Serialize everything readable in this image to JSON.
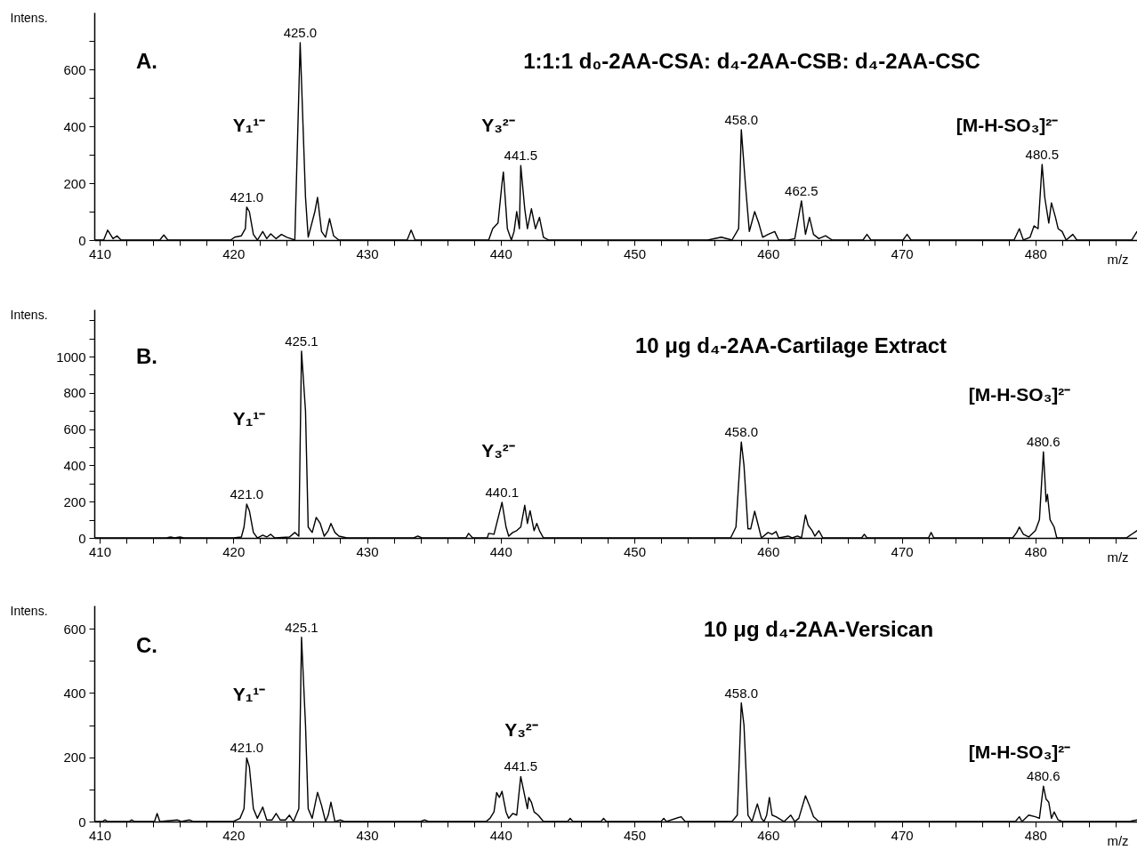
{
  "chart_data": [
    {
      "type": "line",
      "title": "1:1:1 d₀-2AA-CSA: d₄-2AA-CSB: d₄-2AA-CSC",
      "xlabel": "m/z",
      "ylabel": "Intens.",
      "xlim": [
        409.6,
        487.6
      ],
      "ylim": [
        0,
        800
      ],
      "xticks": [
        410,
        {
          "value": 412,
          "label": null
        },
        {
          "value": 414,
          "label": null
        },
        {
          "value": 416,
          "label": null
        },
        {
          "value": 418,
          "label": null
        },
        420,
        {
          "value": 422,
          "label": null
        },
        {
          "value": 424,
          "label": null
        },
        {
          "value": 426,
          "label": null
        },
        {
          "value": 428,
          "label": null
        },
        430,
        {
          "value": 432,
          "label": null
        },
        {
          "value": 434,
          "label": null
        },
        {
          "value": 436,
          "label": null
        },
        {
          "value": 438,
          "label": null
        },
        440,
        {
          "value": 442,
          "label": null
        },
        {
          "value": 444,
          "label": null
        },
        {
          "value": 446,
          "label": null
        },
        {
          "value": 448,
          "label": null
        },
        450,
        {
          "value": 452,
          "label": null
        },
        {
          "value": 454,
          "label": null
        },
        {
          "value": 456,
          "label": null
        },
        {
          "value": 458,
          "label": null
        },
        460,
        {
          "value": 462,
          "label": null
        },
        {
          "value": 464,
          "label": null
        },
        {
          "value": 466,
          "label": null
        },
        {
          "value": 468,
          "label": null
        },
        470,
        {
          "value": 472,
          "label": null
        },
        {
          "value": 474,
          "label": null
        },
        {
          "value": 476,
          "label": null
        },
        {
          "value": 478,
          "label": null
        },
        480,
        {
          "value": 482,
          "label": null
        },
        {
          "value": 484,
          "label": null
        },
        {
          "value": 486,
          "label": null
        }
      ],
      "yticks": [
        0,
        {
          "value": 100,
          "label": null
        },
        200,
        {
          "value": 300,
          "label": null
        },
        400,
        {
          "value": 500,
          "label": null
        },
        600,
        {
          "value": 700,
          "label": null
        }
      ],
      "x": [
        409.6,
        410.3,
        410.6,
        411.0,
        411.3,
        411.6,
        414.5,
        414.8,
        415.1,
        417.3,
        419.8,
        420.1,
        420.6,
        420.9,
        421.0,
        421.2,
        421.5,
        421.8,
        422.2,
        422.5,
        422.8,
        423.2,
        423.6,
        424.0,
        424.3,
        424.6,
        425.0,
        425.4,
        425.6,
        426.1,
        426.3,
        426.6,
        426.9,
        427.2,
        427.5,
        427.9,
        433.0,
        433.3,
        433.6,
        439.1,
        439.4,
        439.8,
        440.1,
        440.2,
        440.5,
        440.8,
        441.0,
        441.2,
        441.4,
        441.5,
        441.8,
        442.0,
        442.3,
        442.6,
        442.9,
        443.2,
        443.6,
        455.5,
        456.5,
        457.3,
        457.8,
        458.0,
        458.3,
        458.6,
        459.0,
        459.3,
        459.6,
        460.0,
        460.5,
        460.8,
        461.5,
        462.0,
        462.5,
        462.8,
        463.1,
        463.4,
        463.8,
        464.3,
        464.8,
        467.1,
        467.4,
        467.7,
        470.1,
        470.4,
        470.7,
        478.4,
        478.8,
        479.1,
        479.6,
        479.9,
        480.2,
        480.5,
        480.7,
        481.0,
        481.2,
        481.5,
        481.7,
        482.0,
        482.3,
        482.8,
        483.1,
        487.2,
        487.6
      ],
      "series": [
        {
          "color": "#000000",
          "values": [
            0,
            0,
            35,
            5,
            15,
            0,
            0,
            18,
            0,
            0,
            0,
            10,
            15,
            40,
            116,
            100,
            20,
            0,
            30,
            5,
            22,
            5,
            20,
            10,
            5,
            0,
            694,
            150,
            10,
            100,
            150,
            30,
            10,
            75,
            15,
            0,
            0,
            35,
            0,
            0,
            40,
            60,
            200,
            239,
            40,
            0,
            30,
            100,
            40,
            262,
            110,
            40,
            110,
            40,
            80,
            10,
            0,
            0,
            10,
            0,
            40,
            388,
            200,
            30,
            100,
            60,
            10,
            20,
            30,
            0,
            0,
            5,
            138,
            20,
            80,
            20,
            5,
            15,
            0,
            0,
            20,
            0,
            0,
            20,
            0,
            0,
            40,
            0,
            10,
            50,
            40,
            266,
            150,
            60,
            131,
            80,
            40,
            30,
            0,
            20,
            0,
            0,
            30
          ]
        }
      ],
      "annotations": [
        "A.",
        "Y₁¹⁻",
        "Y₃²⁻",
        "[M-H-SO₃]²⁻",
        {
          "text": "421.0",
          "x": 421.0,
          "y": 116
        },
        {
          "text": "425.0",
          "x": 425.0,
          "y": 694
        },
        {
          "text": "441.5",
          "x": 441.5,
          "y": 262
        },
        {
          "text": "458.0",
          "x": 458.0,
          "y": 388
        },
        {
          "text": "462.5",
          "x": 462.5,
          "y": 138
        },
        {
          "text": "480.5",
          "x": 480.5,
          "y": 266
        }
      ]
    },
    {
      "type": "line",
      "title": "10 μg d₄-2AA-Cartilage Extract",
      "xlabel": "m/z",
      "ylabel": "Intens.",
      "xlim": [
        409.6,
        487.6
      ],
      "ylim": [
        0,
        1260
      ],
      "xticks": [
        410,
        {
          "value": 412,
          "label": null
        },
        {
          "value": 414,
          "label": null
        },
        {
          "value": 416,
          "label": null
        },
        {
          "value": 418,
          "label": null
        },
        420,
        {
          "value": 422,
          "label": null
        },
        {
          "value": 424,
          "label": null
        },
        {
          "value": 426,
          "label": null
        },
        {
          "value": 428,
          "label": null
        },
        430,
        {
          "value": 432,
          "label": null
        },
        {
          "value": 434,
          "label": null
        },
        {
          "value": 436,
          "label": null
        },
        {
          "value": 438,
          "label": null
        },
        440,
        {
          "value": 442,
          "label": null
        },
        {
          "value": 444,
          "label": null
        },
        {
          "value": 446,
          "label": null
        },
        {
          "value": 448,
          "label": null
        },
        450,
        {
          "value": 452,
          "label": null
        },
        {
          "value": 454,
          "label": null
        },
        {
          "value": 456,
          "label": null
        },
        {
          "value": 458,
          "label": null
        },
        460,
        {
          "value": 462,
          "label": null
        },
        {
          "value": 464,
          "label": null
        },
        {
          "value": 466,
          "label": null
        },
        {
          "value": 468,
          "label": null
        },
        470,
        {
          "value": 472,
          "label": null
        },
        {
          "value": 474,
          "label": null
        },
        {
          "value": 476,
          "label": null
        },
        {
          "value": 478,
          "label": null
        },
        480,
        {
          "value": 482,
          "label": null
        },
        {
          "value": 484,
          "label": null
        },
        {
          "value": 486,
          "label": null
        }
      ],
      "yticks": [
        0,
        {
          "value": 100,
          "label": null
        },
        200,
        {
          "value": 300,
          "label": null
        },
        400,
        {
          "value": 500,
          "label": null
        },
        600,
        {
          "value": 700,
          "label": null
        },
        800,
        {
          "value": 900,
          "label": null
        },
        1000,
        {
          "value": 1100,
          "label": null
        },
        {
          "value": 1200,
          "label": null
        }
      ],
      "x": [
        409.6,
        415.0,
        415.3,
        415.6,
        416.0,
        416.3,
        420.0,
        420.6,
        420.8,
        421.0,
        421.2,
        421.5,
        421.8,
        422.2,
        422.5,
        422.8,
        423.1,
        424.2,
        424.6,
        424.9,
        425.1,
        425.4,
        425.6,
        425.9,
        426.2,
        426.5,
        426.8,
        427.1,
        427.3,
        427.6,
        427.9,
        428.2,
        428.5,
        433.5,
        433.8,
        434.1,
        437.4,
        437.6,
        437.9,
        439.0,
        439.1,
        439.5,
        440.1,
        440.4,
        440.6,
        440.9,
        441.2,
        441.5,
        441.8,
        442.0,
        442.2,
        442.5,
        442.7,
        442.9,
        443.2,
        457.2,
        457.6,
        457.8,
        458.0,
        458.2,
        458.5,
        458.7,
        459.0,
        459.3,
        459.5,
        460.0,
        460.3,
        460.6,
        460.8,
        461.5,
        461.8,
        462.2,
        462.5,
        462.8,
        463.0,
        463.3,
        463.5,
        463.8,
        464.1,
        467.0,
        467.2,
        467.4,
        472.0,
        472.2,
        472.4,
        478.3,
        478.6,
        478.8,
        479.1,
        479.5,
        480.0,
        480.3,
        480.6,
        480.8,
        480.9,
        481.1,
        481.4,
        481.6,
        486.8,
        487.6
      ],
      "series": [
        {
          "color": "#000000",
          "values": [
            0,
            0,
            5,
            0,
            5,
            0,
            0,
            5,
            60,
            186,
            150,
            30,
            0,
            15,
            5,
            20,
            0,
            5,
            30,
            10,
            1030,
            700,
            60,
            30,
            113,
            80,
            10,
            40,
            80,
            30,
            10,
            5,
            0,
            0,
            10,
            0,
            0,
            25,
            0,
            0,
            25,
            20,
            196,
            60,
            10,
            30,
            40,
            60,
            180,
            80,
            150,
            40,
            80,
            40,
            0,
            0,
            60,
            300,
            529,
            400,
            50,
            50,
            147,
            60,
            0,
            30,
            20,
            35,
            0,
            10,
            0,
            10,
            0,
            127,
            70,
            40,
            10,
            40,
            0,
            0,
            20,
            0,
            0,
            30,
            0,
            0,
            30,
            60,
            20,
            5,
            40,
            100,
            475,
            200,
            240,
            100,
            60,
            0,
            0,
            40
          ]
        }
      ],
      "annotations": [
        "B.",
        "Y₁¹⁻",
        "Y₃²⁻",
        "[M-H-SO₃]²⁻",
        {
          "text": "421.0",
          "x": 421.0,
          "y": 186
        },
        {
          "text": "425.1",
          "x": 425.1,
          "y": 1030
        },
        {
          "text": "440.1",
          "x": 440.1,
          "y": 196
        },
        {
          "text": "458.0",
          "x": 458.0,
          "y": 529
        },
        {
          "text": "480.6",
          "x": 480.6,
          "y": 475
        }
      ]
    },
    {
      "type": "line",
      "title": "10 μg d₄-2AA-Versican",
      "xlabel": "m/z",
      "ylabel": "Intens.",
      "xlim": [
        409.6,
        487.6
      ],
      "ylim": [
        0,
        672
      ],
      "xticks": [
        410,
        {
          "value": 412,
          "label": null
        },
        {
          "value": 414,
          "label": null
        },
        {
          "value": 416,
          "label": null
        },
        {
          "value": 418,
          "label": null
        },
        420,
        {
          "value": 422,
          "label": null
        },
        {
          "value": 424,
          "label": null
        },
        {
          "value": 426,
          "label": null
        },
        {
          "value": 428,
          "label": null
        },
        430,
        {
          "value": 432,
          "label": null
        },
        {
          "value": 434,
          "label": null
        },
        {
          "value": 436,
          "label": null
        },
        {
          "value": 438,
          "label": null
        },
        440,
        {
          "value": 442,
          "label": null
        },
        {
          "value": 444,
          "label": null
        },
        {
          "value": 446,
          "label": null
        },
        {
          "value": 448,
          "label": null
        },
        450,
        {
          "value": 452,
          "label": null
        },
        {
          "value": 454,
          "label": null
        },
        {
          "value": 456,
          "label": null
        },
        {
          "value": 458,
          "label": null
        },
        460,
        {
          "value": 462,
          "label": null
        },
        {
          "value": 464,
          "label": null
        },
        {
          "value": 466,
          "label": null
        },
        {
          "value": 468,
          "label": null
        },
        470,
        {
          "value": 472,
          "label": null
        },
        {
          "value": 474,
          "label": null
        },
        {
          "value": 476,
          "label": null
        },
        {
          "value": 478,
          "label": null
        },
        480,
        {
          "value": 482,
          "label": null
        },
        {
          "value": 484,
          "label": null
        },
        {
          "value": 486,
          "label": null
        }
      ],
      "yticks": [
        0,
        {
          "value": 100,
          "label": null
        },
        200,
        {
          "value": 300,
          "label": null
        },
        400,
        {
          "value": 500,
          "label": null
        },
        600
      ],
      "x": [
        409.6,
        410.2,
        410.4,
        410.6,
        412.2,
        412.4,
        412.6,
        414.1,
        414.3,
        414.5,
        415.8,
        416.1,
        416.7,
        417.0,
        420.0,
        420.5,
        420.8,
        421.0,
        421.2,
        421.5,
        421.8,
        422.2,
        422.5,
        422.9,
        423.2,
        423.5,
        423.9,
        424.2,
        424.5,
        424.9,
        425.1,
        425.4,
        425.6,
        425.9,
        426.3,
        426.6,
        426.9,
        427.1,
        427.3,
        427.6,
        428.0,
        428.3,
        434.0,
        434.3,
        434.6,
        438.9,
        439.2,
        439.5,
        439.7,
        439.9,
        440.1,
        440.4,
        440.6,
        440.9,
        441.2,
        441.5,
        441.8,
        442.0,
        442.1,
        442.3,
        442.5,
        442.8,
        443.2,
        445.0,
        445.2,
        445.4,
        447.5,
        447.7,
        447.9,
        452.0,
        452.2,
        452.4,
        453.5,
        453.8,
        457.3,
        457.7,
        458.0,
        458.2,
        458.5,
        458.8,
        459.2,
        459.5,
        459.7,
        459.9,
        460.1,
        460.3,
        460.6,
        461.2,
        461.7,
        462.0,
        462.3,
        462.8,
        463.1,
        463.4,
        463.8,
        478.5,
        478.8,
        479.0,
        479.5,
        480.0,
        480.3,
        480.6,
        480.8,
        481.0,
        481.2,
        481.4,
        481.7,
        482.0,
        487.0,
        487.6
      ],
      "series": [
        {
          "color": "#000000",
          "values": [
            0,
            0,
            5,
            0,
            0,
            5,
            0,
            0,
            25,
            0,
            5,
            0,
            5,
            0,
            0,
            10,
            40,
            198,
            170,
            40,
            10,
            45,
            5,
            5,
            25,
            5,
            5,
            20,
            0,
            40,
            573,
            300,
            40,
            10,
            91,
            50,
            0,
            20,
            60,
            0,
            5,
            0,
            0,
            5,
            0,
            0,
            10,
            30,
            90,
            75,
            94,
            30,
            10,
            25,
            20,
            140,
            80,
            40,
            75,
            60,
            30,
            20,
            0,
            0,
            10,
            0,
            0,
            10,
            0,
            0,
            10,
            0,
            15,
            0,
            0,
            20,
            369,
            300,
            20,
            0,
            55,
            10,
            0,
            20,
            75,
            20,
            15,
            0,
            20,
            0,
            10,
            80,
            50,
            15,
            0,
            0,
            15,
            0,
            20,
            15,
            10,
            110,
            70,
            60,
            10,
            30,
            5,
            0,
            0,
            5
          ]
        }
      ],
      "annotations": [
        "C.",
        "Y₁¹⁻",
        "Y₃²⁻",
        "[M-H-SO₃]²⁻",
        {
          "text": "421.0",
          "x": 421.0,
          "y": 198
        },
        {
          "text": "425.1",
          "x": 425.1,
          "y": 573
        },
        {
          "text": "441.5",
          "x": 441.5,
          "y": 140
        },
        {
          "text": "458.0",
          "x": 458.0,
          "y": 369
        },
        {
          "text": "480.6",
          "x": 480.6,
          "y": 110
        }
      ]
    }
  ]
}
